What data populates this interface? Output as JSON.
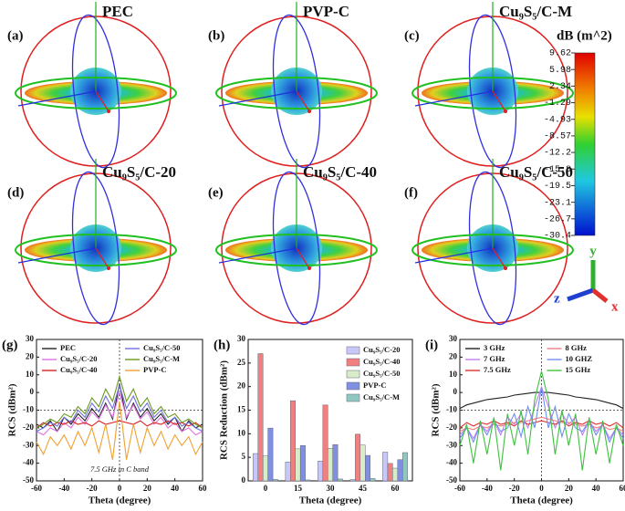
{
  "panels": [
    {
      "label": "(a)",
      "title": "PEC"
    },
    {
      "label": "(b)",
      "title": "PVP-C"
    },
    {
      "label": "(c)",
      "title": "Cu₉S₅/C-M"
    },
    {
      "label": "(d)",
      "title": "Cu₉S₅/C-20"
    },
    {
      "label": "(e)",
      "title": "Cu₉S₅/C-40"
    },
    {
      "label": "(f)",
      "title": "Cu₉S₅/C-50"
    }
  ],
  "colorbar": {
    "title": "dB (m^2)",
    "ticks": [
      "9.62",
      "5.98",
      "2.34",
      "-1.29",
      "-4.93",
      "-8.57",
      "-12.2",
      "-15.8",
      "-19.5",
      "-23.1",
      "-26.7",
      "-30.4"
    ]
  },
  "axes_triad": {
    "y": "y",
    "z": "z",
    "x": "x"
  },
  "chart_data": [
    {
      "type": "line",
      "panel_label": "(g)",
      "annotation": "7.5 GHz in C band",
      "xlabel": "Theta (degree)",
      "ylabel": "RCS (dBm²)",
      "x": [
        -60,
        -55,
        -50,
        -45,
        -40,
        -35,
        -30,
        -25,
        -20,
        -15,
        -10,
        -5,
        0,
        5,
        10,
        15,
        20,
        25,
        30,
        35,
        40,
        45,
        50,
        55,
        60
      ],
      "xlim": [
        -60,
        60
      ],
      "xticks": [
        -60,
        -40,
        -20,
        0,
        20,
        40,
        60
      ],
      "ylim": [
        -50,
        30
      ],
      "yticks": [
        -50,
        -40,
        -30,
        -20,
        -10,
        0,
        10,
        20,
        30
      ],
      "vlines": [
        0
      ],
      "hlines": [
        -10
      ],
      "series": [
        {
          "name": "PEC",
          "color": "#222222",
          "values": [
            -18,
            -20,
            -16,
            -22,
            -14,
            -18,
            -12,
            -16,
            -9,
            -14,
            -6,
            -15,
            5,
            -15,
            -6,
            -14,
            -9,
            -16,
            -12,
            -18,
            -14,
            -22,
            -16,
            -20,
            -18
          ]
        },
        {
          "name": "Cu₉S₅/C-20",
          "color": "#e070e0",
          "values": [
            -22,
            -24,
            -20,
            -22,
            -17,
            -20,
            -14,
            -18,
            -11,
            -15,
            -7,
            -14,
            0,
            -14,
            -7,
            -15,
            -11,
            -18,
            -14,
            -20,
            -17,
            -22,
            -20,
            -24,
            -22
          ]
        },
        {
          "name": "Cu₉S₅/C-40",
          "color": "#e02020",
          "values": [
            -20,
            -17,
            -19,
            -17,
            -18,
            -16,
            -18,
            -17,
            -19,
            -16,
            -18,
            -17,
            -16,
            -17,
            -18,
            -16,
            -19,
            -17,
            -18,
            -16,
            -18,
            -17,
            -19,
            -17,
            -20
          ]
        },
        {
          "name": "Cu₉S₅/C-50",
          "color": "#7070e0",
          "values": [
            -22,
            -20,
            -17,
            -19,
            -14,
            -17,
            -10,
            -14,
            -6,
            -11,
            -2,
            -9,
            4,
            -9,
            -2,
            -11,
            -6,
            -14,
            -10,
            -17,
            -14,
            -19,
            -17,
            -20,
            -22
          ]
        },
        {
          "name": "Cu₉S₅/C-M",
          "color": "#6a9a20",
          "values": [
            -20,
            -18,
            -15,
            -17,
            -12,
            -14,
            -8,
            -12,
            -3,
            -8,
            2,
            -5,
            9,
            -5,
            2,
            -8,
            -3,
            -12,
            -8,
            -14,
            -12,
            -17,
            -15,
            -18,
            -20
          ]
        },
        {
          "name": "PVP-C",
          "color": "#f0a030",
          "values": [
            -28,
            -35,
            -25,
            -30,
            -24,
            -32,
            -22,
            -30,
            -20,
            -34,
            -18,
            -38,
            -5,
            -38,
            -18,
            -34,
            -20,
            -30,
            -22,
            -32,
            -24,
            -30,
            -25,
            -35,
            -28
          ]
        }
      ]
    },
    {
      "type": "bar",
      "panel_label": "(h)",
      "xlabel": "Theta (degree)",
      "ylabel": "RCS Reduction (dBm²)",
      "x": [
        0,
        15,
        30,
        45,
        60
      ],
      "xlim": [
        -8,
        68
      ],
      "xticks": [
        0,
        15,
        30,
        45,
        60
      ],
      "ylim": [
        0,
        30
      ],
      "yticks": [
        0,
        5,
        10,
        15,
        20,
        25,
        30
      ],
      "series": [
        {
          "name": "Cu₉S₅/C-20",
          "color": "#c8c8f8",
          "values": [
            5.8,
            4,
            4.2,
            0.3,
            6.1
          ]
        },
        {
          "name": "Cu₉S₅/C-40",
          "color": "#f08080",
          "values": [
            27,
            17,
            16.1,
            9.9,
            3.7
          ]
        },
        {
          "name": "Cu₉S₅/C-50",
          "color": "#d8ecc8",
          "values": [
            5.3,
            6.8,
            6.9,
            7.6,
            2.7
          ]
        },
        {
          "name": "PVP-C",
          "color": "#8090e0",
          "values": [
            11.2,
            7.5,
            7.7,
            5.4,
            4.5
          ]
        },
        {
          "name": "Cu₉S₅/C-M",
          "color": "#90c8c0",
          "values": [
            0.3,
            0.2,
            0.4,
            0.5,
            6
          ]
        }
      ]
    },
    {
      "type": "line",
      "panel_label": "(i)",
      "xlabel": "Theta (degree)",
      "ylabel": "RCS (dBm²)",
      "x": [
        -60,
        -55,
        -50,
        -45,
        -40,
        -35,
        -30,
        -25,
        -20,
        -15,
        -10,
        -5,
        0,
        5,
        10,
        15,
        20,
        25,
        30,
        35,
        40,
        45,
        50,
        55,
        60
      ],
      "xlim": [
        -60,
        60
      ],
      "xticks": [
        -60,
        -40,
        -20,
        0,
        20,
        40,
        60
      ],
      "ylim": [
        -50,
        30
      ],
      "yticks": [
        -50,
        -40,
        -30,
        -20,
        -10,
        0,
        10,
        20,
        30
      ],
      "vlines": [
        0
      ],
      "hlines": [
        -10
      ],
      "series": [
        {
          "name": "3 GHz",
          "color": "#222222",
          "values": [
            -9,
            -7,
            -6,
            -5,
            -4,
            -3.5,
            -3,
            -2.5,
            -1.5,
            -1,
            -0.5,
            0,
            0,
            0,
            -0.5,
            -1,
            -1.5,
            -2.5,
            -3,
            -3.5,
            -4,
            -5,
            -6,
            -7,
            -9
          ]
        },
        {
          "name": "7 GHz",
          "color": "#c080f0",
          "values": [
            -24,
            -20,
            -26,
            -18,
            -22,
            -16,
            -24,
            -14,
            -18,
            -12,
            -20,
            -8,
            3,
            -8,
            -20,
            -12,
            -18,
            -14,
            -24,
            -16,
            -22,
            -18,
            -26,
            -20,
            -24
          ]
        },
        {
          "name": "7.5 GHz",
          "color": "#e03030",
          "values": [
            -20,
            -17,
            -19,
            -17,
            -18,
            -16,
            -18,
            -17,
            -19,
            -16,
            -18,
            -17,
            -16,
            -17,
            -18,
            -16,
            -19,
            -17,
            -18,
            -16,
            -18,
            -17,
            -19,
            -17,
            -20
          ]
        },
        {
          "name": "8 GHz",
          "color": "#f08080",
          "values": [
            -22,
            -20,
            -21,
            -19,
            -20,
            -18,
            -19,
            -18,
            -17,
            -17,
            -16,
            -15,
            -14,
            -15,
            -16,
            -17,
            -17,
            -18,
            -19,
            -18,
            -20,
            -19,
            -21,
            -20,
            -22
          ]
        },
        {
          "name": "10 GHZ",
          "color": "#7090f0",
          "values": [
            -26,
            -20,
            -28,
            -18,
            -24,
            -16,
            -22,
            -20,
            -12,
            -25,
            -8,
            -20,
            3,
            -20,
            -8,
            -25,
            -12,
            -20,
            -22,
            -16,
            -24,
            -18,
            -28,
            -20,
            -26
          ]
        },
        {
          "name": "15 GHz",
          "color": "#40c040",
          "values": [
            -30,
            -18,
            -40,
            -16,
            -35,
            -14,
            -44,
            -12,
            -30,
            -10,
            -35,
            -4,
            12,
            -4,
            -35,
            -10,
            -30,
            -12,
            -44,
            -14,
            -35,
            -16,
            -40,
            -18,
            -30
          ]
        }
      ]
    }
  ]
}
